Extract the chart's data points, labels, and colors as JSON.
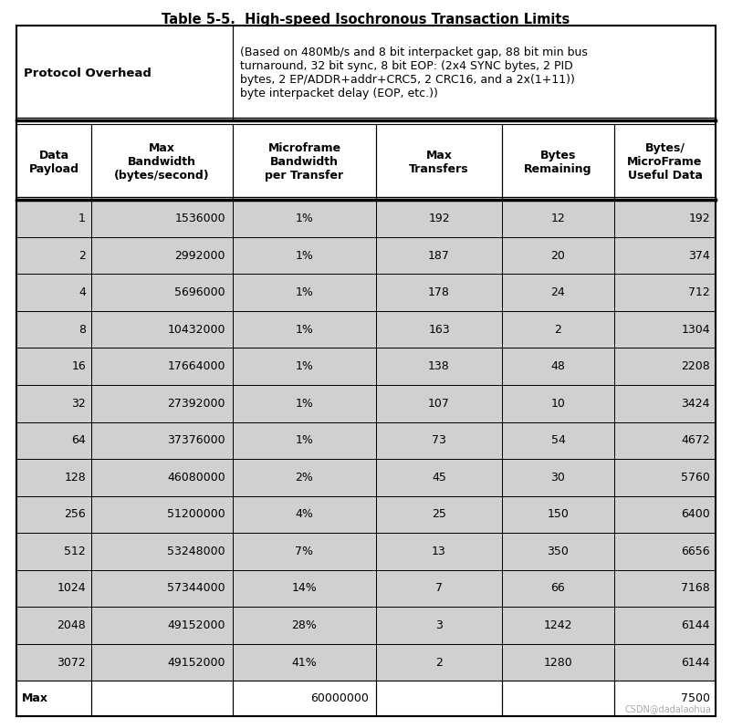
{
  "title": "Table 5-5.  High-speed Isochronous Transaction Limits",
  "protocol_overhead_label": "Protocol Overhead",
  "protocol_overhead_text": "(Based on 480Mb/s and 8 bit interpacket gap, 88 bit min bus\nturnaround, 32 bit sync, 8 bit EOP: (2x4 SYNC bytes, 2 PID\nbytes, 2 EP/ADDR+addr+CRC5, 2 CRC16, and a 2x(1+11))\nbyte interpacket delay (EOP, etc.))",
  "col_headers": [
    "Data\nPayload",
    "Max\nBandwidth\n(bytes/second)",
    "Microframe\nBandwidth\nper Transfer",
    "Max\nTransfers",
    "Bytes\nRemaining",
    "Bytes/\nMicroFrame\nUseful Data"
  ],
  "rows": [
    [
      "1",
      "1536000",
      "1%",
      "192",
      "12",
      "192"
    ],
    [
      "2",
      "2992000",
      "1%",
      "187",
      "20",
      "374"
    ],
    [
      "4",
      "5696000",
      "1%",
      "178",
      "24",
      "712"
    ],
    [
      "8",
      "10432000",
      "1%",
      "163",
      "2",
      "1304"
    ],
    [
      "16",
      "17664000",
      "1%",
      "138",
      "48",
      "2208"
    ],
    [
      "32",
      "27392000",
      "1%",
      "107",
      "10",
      "3424"
    ],
    [
      "64",
      "37376000",
      "1%",
      "73",
      "54",
      "4672"
    ],
    [
      "128",
      "46080000",
      "2%",
      "45",
      "30",
      "5760"
    ],
    [
      "256",
      "51200000",
      "4%",
      "25",
      "150",
      "6400"
    ],
    [
      "512",
      "53248000",
      "7%",
      "13",
      "350",
      "6656"
    ],
    [
      "1024",
      "57344000",
      "14%",
      "7",
      "66",
      "7168"
    ],
    [
      "2048",
      "49152000",
      "28%",
      "3",
      "1242",
      "6144"
    ],
    [
      "3072",
      "49152000",
      "41%",
      "2",
      "1280",
      "6144"
    ]
  ],
  "max_row_col0": "Max",
  "max_row_col1": "",
  "max_row_col2": "60000000",
  "max_row_col3": "",
  "max_row_col4": "",
  "max_row_col5": "",
  "max_row_col6": "7500",
  "bg_white": "#ffffff",
  "bg_gray": "#d0d0d0",
  "border_color": "#000000",
  "title_fontsize": 10.5,
  "header_fontsize": 9,
  "data_fontsize": 9,
  "watermark": "CSDN@dadalaohua",
  "watermark_color": "#aaaaaa"
}
